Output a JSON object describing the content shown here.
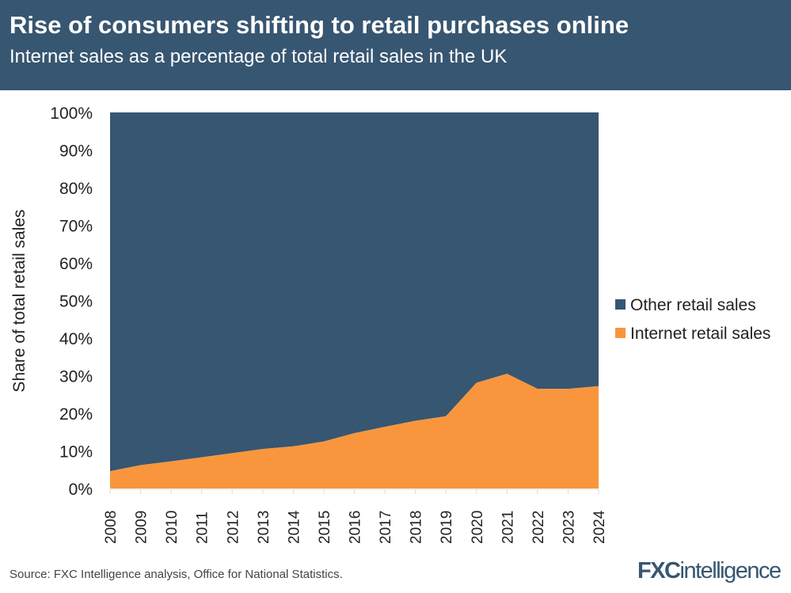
{
  "header": {
    "title": "Rise of consumers shifting to retail purchases online",
    "subtitle": "Internet sales as a percentage of total retail sales in the UK"
  },
  "footer": {
    "source": "Source: FXC Intelligence analysis, Office for National Statistics.",
    "logo": "FXCintelligence"
  },
  "chart_data": {
    "type": "area",
    "stacked": true,
    "ylabel": "Share of total retail sales",
    "ylim": [
      0,
      100
    ],
    "yticks": [
      "0%",
      "10%",
      "20%",
      "30%",
      "40%",
      "50%",
      "60%",
      "70%",
      "80%",
      "90%",
      "100%"
    ],
    "x": [
      "2008",
      "2009",
      "2010",
      "2011",
      "2012",
      "2013",
      "2014",
      "2015",
      "2016",
      "2017",
      "2018",
      "2019",
      "2020",
      "2021",
      "2022",
      "2023",
      "2024"
    ],
    "series": [
      {
        "name": "Internet retail sales",
        "color": "#f9963d",
        "values": [
          4.6,
          6.2,
          7.2,
          8.3,
          9.4,
          10.5,
          11.2,
          12.5,
          14.7,
          16.4,
          18.0,
          19.2,
          28.1,
          30.5,
          26.5,
          26.5,
          27.2
        ]
      },
      {
        "name": "Other retail sales",
        "color": "#375671",
        "values": [
          95.4,
          93.8,
          92.8,
          91.7,
          90.6,
          89.5,
          88.8,
          87.5,
          85.3,
          83.6,
          82.0,
          80.8,
          71.9,
          69.5,
          73.5,
          73.5,
          72.8
        ]
      }
    ],
    "legend": "right",
    "grid": false
  }
}
